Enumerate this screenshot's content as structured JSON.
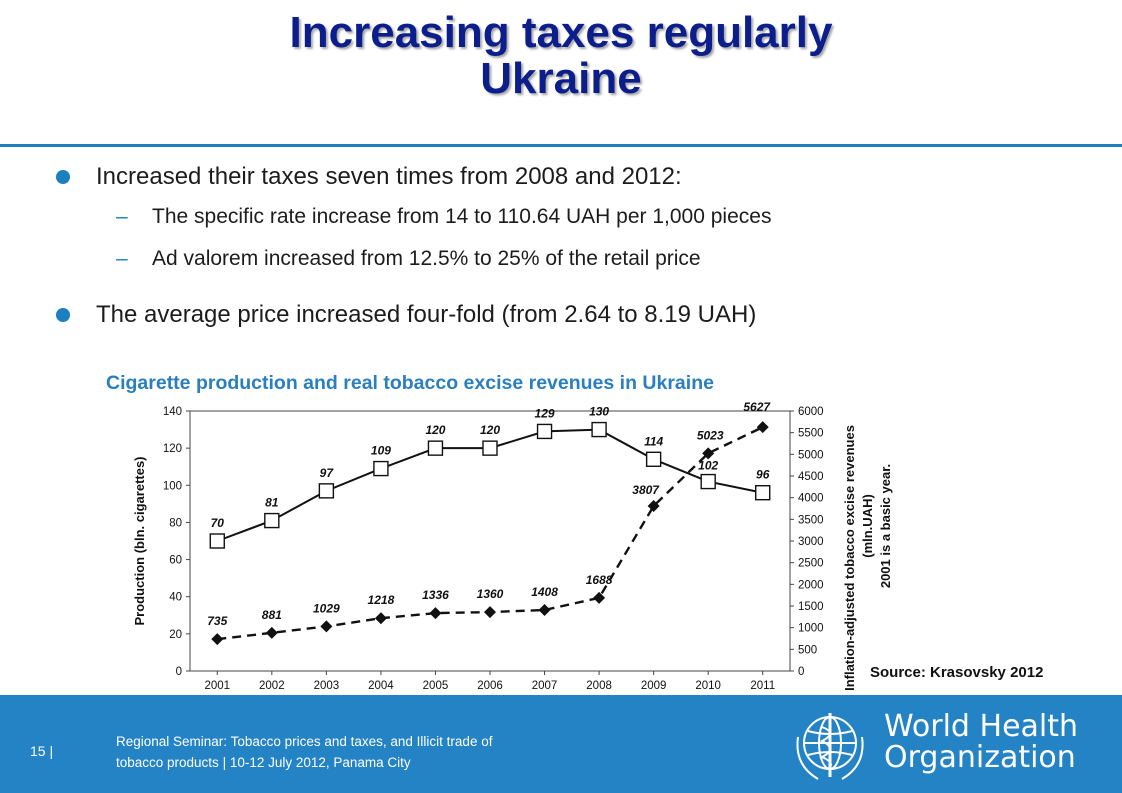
{
  "title": {
    "line1": "Increasing taxes regularly",
    "line2": "Ukraine"
  },
  "bullets": [
    {
      "text": "Increased their taxes seven times from 2008 and 2012:",
      "sub": [
        "The specific rate increase from 14 to 110.64 UAH per 1,000 pieces",
        "Ad valorem increased from 12.5% to 25% of the retail price"
      ]
    },
    {
      "text": "The average price increased four-fold (from 2.64 to 8.19 UAH)",
      "sub": []
    }
  ],
  "chart_title": "Cigarette production and real tobacco excise revenues in Ukraine",
  "chart_data": {
    "type": "line",
    "x": [
      "2001",
      "2002",
      "2003",
      "2004",
      "2005",
      "2006",
      "2007",
      "2008",
      "2009",
      "2010",
      "2011"
    ],
    "series": [
      {
        "axis": "left",
        "style": "solid",
        "marker": "square",
        "values": [
          70,
          81,
          97,
          109,
          120,
          120,
          129,
          130,
          114,
          102,
          96
        ],
        "labels": [
          "70",
          "81",
          "97",
          "109",
          "120",
          "120",
          "129",
          "130",
          "114",
          "102",
          "96"
        ]
      },
      {
        "axis": "right",
        "style": "dashed",
        "marker": "diamond",
        "values": [
          735,
          881,
          1029,
          1218,
          1336,
          1360,
          1408,
          1688,
          3807,
          5023,
          5627
        ],
        "labels": [
          "735",
          "881",
          "1029",
          "1218",
          "1336",
          "1360",
          "1408",
          "1688",
          "3807",
          "5023",
          "5627"
        ]
      }
    ],
    "ylabel_left": "Production (bln. cigarettes)",
    "ylabel_right": [
      "Inflation-adjusted tobacco excise revenues",
      "(mln.UAH)",
      "2001 is a basic year."
    ],
    "ylim_left": [
      0,
      140
    ],
    "yticks_left": [
      0,
      20,
      40,
      60,
      80,
      100,
      120,
      140
    ],
    "ylim_right": [
      0,
      6000
    ],
    "yticks_right": [
      0,
      500,
      1000,
      1500,
      2000,
      2500,
      3000,
      3500,
      4000,
      4500,
      5000,
      5500,
      6000
    ],
    "grid": false,
    "legend": "none"
  },
  "source": "Source: Krasovsky 2012",
  "footer": {
    "page_number": "15 |",
    "line1": "Regional Seminar: Tobacco prices and taxes, and Illicit trade of",
    "line2": "tobacco products  |  10-12  July 2012, Panama City",
    "org_line1": "World Health",
    "org_line2": "Organization",
    "logo_icon": "who-emblem-icon"
  },
  "colors": {
    "title": "#0b1e8c",
    "accent": "#1b7fc0",
    "footer_bg": "#2383c4",
    "chart_title": "#2a7fbf"
  }
}
